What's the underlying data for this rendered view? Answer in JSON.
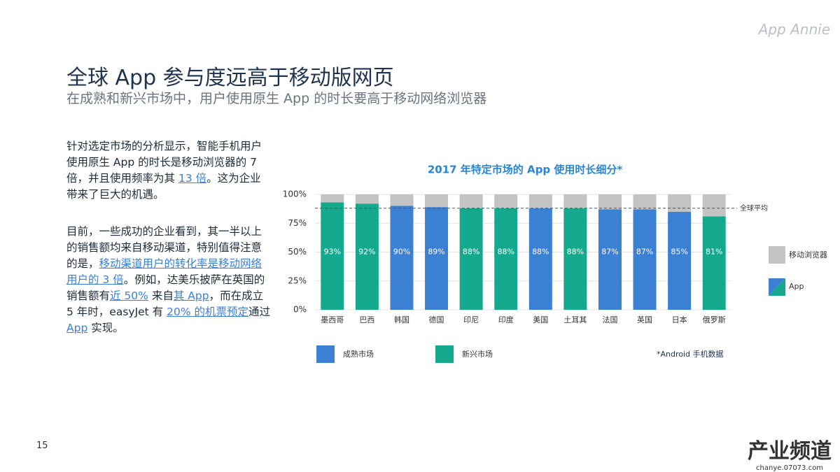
{
  "logo": "App Annie",
  "page_number": "15",
  "watermark": {
    "title": "产业频道",
    "url": "chanye.07073.com"
  },
  "header": {
    "title": "全球 App 参与度远高于移动版网页",
    "subtitle": "在成熟和新兴市场中，用户使用原生 App 的时长要高于移动网络浏览器"
  },
  "paragraphs": [
    [
      {
        "text": "针对选定市场的分析显示，智能手机用户使用原生 App 的时长是移动浏览器的 7 倍，并且使用频率为其 "
      },
      {
        "text": "13 倍",
        "link": true
      },
      {
        "text": "。这为企业带来了巨大的机遇。"
      }
    ],
    [
      {
        "text": "目前，一些成功的企业看到，其一半以上的销售额均来自移动渠道，特别值得注意的是，"
      },
      {
        "text": "移动渠道用户的转化率是移动网络用户的 3 倍",
        "link": true
      },
      {
        "text": "。例如，达美乐披萨在英国的销售额有"
      },
      {
        "text": "近 50%",
        "link": true
      },
      {
        "text": " 来自"
      },
      {
        "text": "其 App",
        "link": true
      },
      {
        "text": "，而在成立 5 年时，easyJet 有 "
      },
      {
        "text": "20% 的机票预定",
        "link": true
      },
      {
        "text": "通过 "
      },
      {
        "text": "App",
        "link": true
      },
      {
        "text": " 实现。"
      }
    ]
  ],
  "chart_data": {
    "type": "stacked_bar",
    "title": "2017 年特定市场的 App 使用时长细分*",
    "note": "*Android 手机数据",
    "categories": [
      "墨西哥",
      "巴西",
      "韩国",
      "德国",
      "印尼",
      "印度",
      "美国",
      "土耳其",
      "法国",
      "英国",
      "日本",
      "俄罗斯"
    ],
    "series": [
      {
        "name": "App",
        "colors": [
          "#14a98c",
          "#14a98c",
          "#3b80d3",
          "#3b80d3",
          "#14a98c",
          "#14a98c",
          "#3b80d3",
          "#14a98c",
          "#3b80d3",
          "#3b80d3",
          "#3b80d3",
          "#14a98c"
        ],
        "values": [
          93,
          92,
          90,
          89,
          88,
          88,
          88,
          88,
          87,
          87,
          85,
          81
        ],
        "value_labels": [
          "93%",
          "92%",
          "90%",
          "89%",
          "88%",
          "88%",
          "88%",
          "88%",
          "87%",
          "87%",
          "85%",
          "81%"
        ]
      },
      {
        "name": "移动浏览器",
        "color": "#c3c3c3",
        "values": [
          7,
          8,
          10,
          11,
          12,
          12,
          12,
          12,
          13,
          13,
          15,
          19
        ]
      }
    ],
    "market_legend": [
      {
        "name": "成熟市场",
        "color": "#3b80d3"
      },
      {
        "name": "新兴市场",
        "color": "#14a98c"
      }
    ],
    "average": {
      "label": "全球平均",
      "value": 88
    },
    "ylim": [
      0,
      100
    ],
    "yticks": [
      {
        "value": 0,
        "label": "0%"
      },
      {
        "value": 25,
        "label": "25%"
      },
      {
        "value": 50,
        "label": "50%"
      },
      {
        "value": 75,
        "label": "75%"
      },
      {
        "value": 100,
        "label": "100%"
      }
    ]
  }
}
